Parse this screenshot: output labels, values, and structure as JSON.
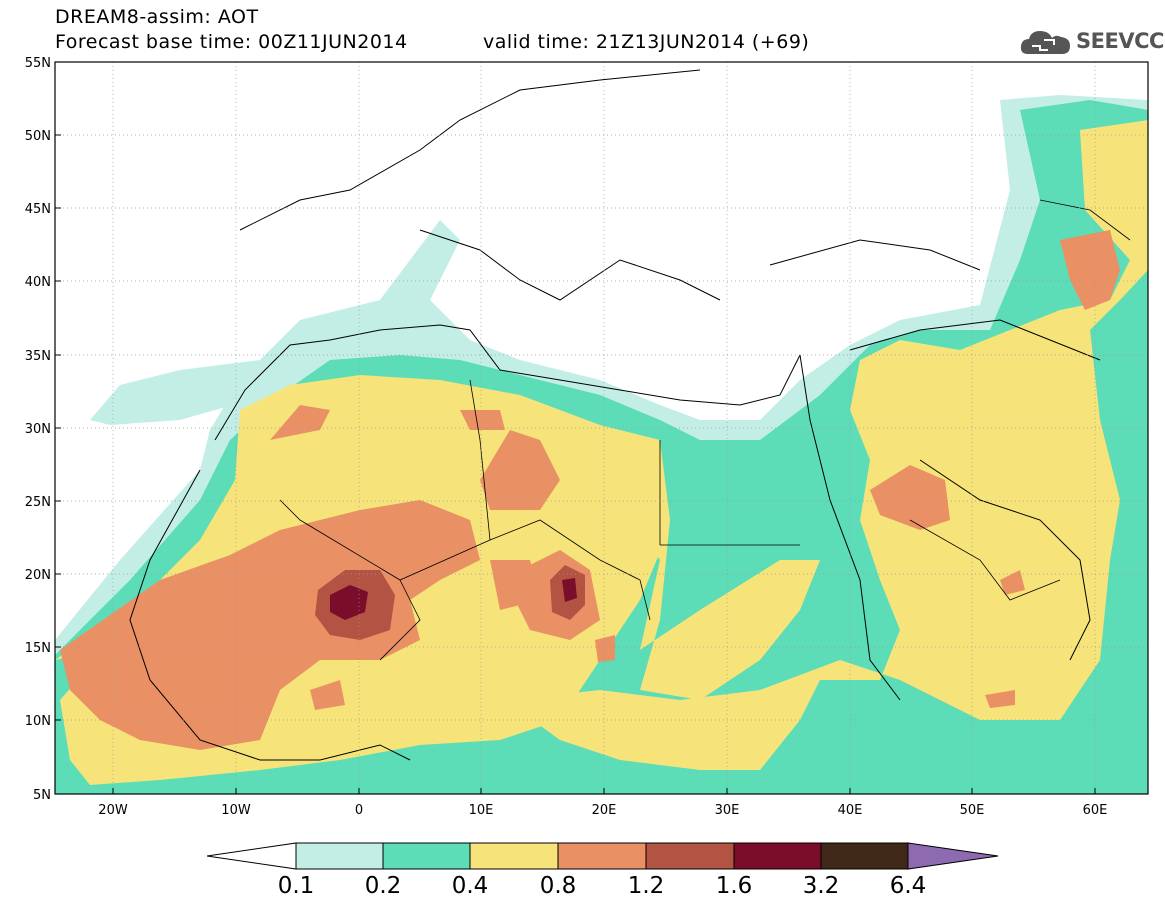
{
  "header": {
    "title": "DREAM8-assim: AOT",
    "base_time": "Forecast base time: 00Z11JUN2014",
    "valid_time": "valid time: 21Z13JUN2014 (+69)",
    "logo_text": "SEEVCCC"
  },
  "map": {
    "lat_labels": [
      "55N",
      "50N",
      "45N",
      "40N",
      "35N",
      "30N",
      "25N",
      "20N",
      "15N",
      "10N",
      "5N"
    ],
    "lon_labels": [
      "20W",
      "10W",
      "0",
      "10E",
      "20E",
      "30E",
      "40E",
      "50E",
      "60E"
    ],
    "ocean_color": "#ffffff",
    "grid_style": "dotted"
  },
  "legend": {
    "levels": [
      "0.1",
      "0.2",
      "0.4",
      "0.8",
      "1.2",
      "1.6",
      "3.2",
      "6.4"
    ],
    "colors": [
      "#ffffff",
      "#c2eee6",
      "#5ddcb8",
      "#f6e47a",
      "#ea9065",
      "#b35343",
      "#7a0d2a",
      "#3f2818",
      "#8e6bb0"
    ]
  }
}
